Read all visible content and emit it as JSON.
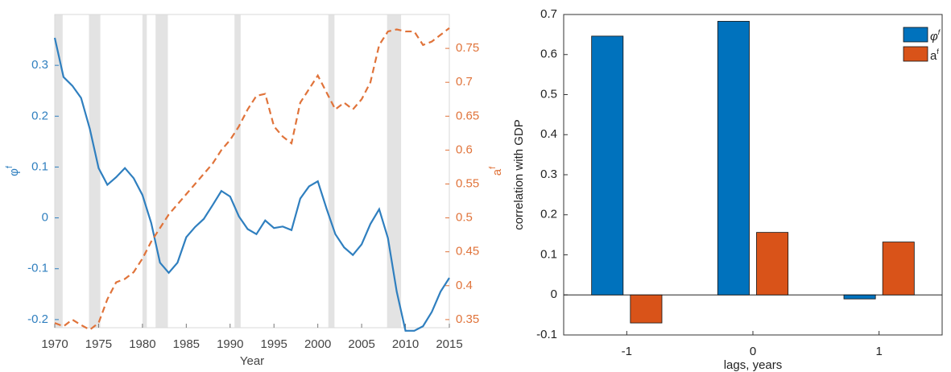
{
  "chart_data": [
    {
      "type": "line",
      "xlabel": "Year",
      "ylabel": "φ",
      "ylabel_sup": "f",
      "y2label": "a",
      "y2label_sup": "f",
      "x": [
        1970,
        1971,
        1972,
        1973,
        1974,
        1975,
        1976,
        1977,
        1978,
        1979,
        1980,
        1981,
        1982,
        1983,
        1984,
        1985,
        1986,
        1987,
        1988,
        1989,
        1990,
        1991,
        1992,
        1993,
        1994,
        1995,
        1996,
        1997,
        1998,
        1999,
        2000,
        2001,
        2002,
        2003,
        2004,
        2005,
        2006,
        2007,
        2008,
        2009,
        2010,
        2011,
        2012,
        2013,
        2014,
        2015
      ],
      "series": [
        {
          "color": "#2f7fbf",
          "line_style": "solid",
          "values": [
            0.354,
            0.277,
            0.26,
            0.236,
            0.175,
            0.098,
            0.065,
            0.08,
            0.098,
            0.078,
            0.045,
            -0.01,
            -0.088,
            -0.108,
            -0.088,
            -0.038,
            -0.018,
            -0.002,
            0.025,
            0.053,
            0.042,
            0.003,
            -0.022,
            -0.032,
            -0.005,
            -0.02,
            -0.017,
            -0.024,
            0.038,
            0.062,
            0.072,
            0.018,
            -0.032,
            -0.058,
            -0.073,
            -0.052,
            -0.012,
            0.017,
            -0.04,
            -0.145,
            -0.222,
            -0.222,
            -0.213,
            -0.185,
            -0.145,
            -0.118
          ]
        },
        {
          "color": "#e0733a",
          "line_style": "dashed",
          "axis": "y2",
          "values": [
            0.345,
            0.34,
            0.35,
            0.342,
            0.335,
            0.345,
            0.38,
            0.405,
            0.41,
            0.42,
            0.44,
            0.465,
            0.485,
            0.505,
            0.52,
            0.535,
            0.55,
            0.565,
            0.58,
            0.6,
            0.615,
            0.635,
            0.66,
            0.68,
            0.683,
            0.635,
            0.62,
            0.61,
            0.67,
            0.69,
            0.71,
            0.685,
            0.66,
            0.67,
            0.66,
            0.675,
            0.7,
            0.755,
            0.775,
            0.778,
            0.775,
            0.775,
            0.755,
            0.76,
            0.77,
            0.78
          ]
        }
      ],
      "shaded_regions": [
        [
          1969.9,
          1970.9
        ],
        [
          1973.9,
          1975.2
        ],
        [
          1980,
          1980.5
        ],
        [
          1981.5,
          1982.9
        ],
        [
          1990.5,
          1991.2
        ],
        [
          2001.2,
          2001.9
        ],
        [
          2007.9,
          2009.5
        ]
      ],
      "shade_color": "#e3e3e3",
      "xlim": [
        1970,
        2015
      ],
      "xticks": [
        1970,
        1975,
        1980,
        1985,
        1990,
        1995,
        2000,
        2005,
        2010,
        2015
      ],
      "ylim": [
        -0.216,
        0.4
      ],
      "yticks": [
        -0.2,
        -0.1,
        0,
        0.1,
        0.2,
        0.3
      ],
      "y2lim": [
        0.338,
        0.8
      ],
      "y2ticks": [
        0.35,
        0.4,
        0.45,
        0.5,
        0.55,
        0.6,
        0.65,
        0.7,
        0.75
      ]
    },
    {
      "type": "bar",
      "xlabel": "lags, years",
      "ylabel": "correlation with GDP",
      "categories": [
        "-1",
        "0",
        "1"
      ],
      "series": [
        {
          "name": "φ",
          "name_sup": "f",
          "color": "#0072bd",
          "values": [
            0.646,
            0.683,
            -0.01
          ]
        },
        {
          "name": "a",
          "name_sup": "f",
          "color": "#d95319",
          "values": [
            -0.07,
            0.156,
            0.132
          ]
        }
      ],
      "ylim": [
        -0.1,
        0.7
      ],
      "yticks": [
        -0.1,
        0,
        0.1,
        0.2,
        0.3,
        0.4,
        0.5,
        0.6,
        0.7
      ],
      "legend": "upper right"
    }
  ]
}
